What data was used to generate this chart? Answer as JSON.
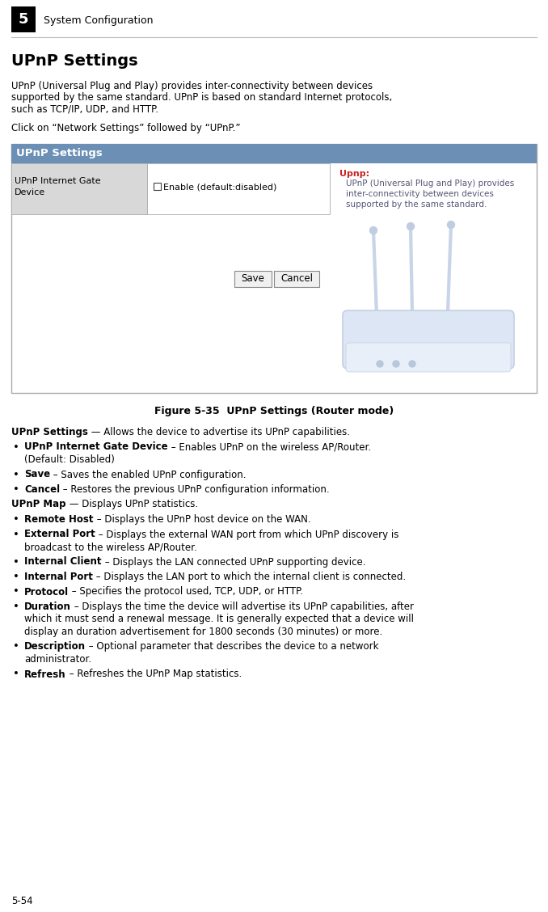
{
  "page_width": 6.78,
  "page_height": 11.28,
  "bg_color": "#ffffff",
  "header_num": "5",
  "header_text": "System Configuration",
  "section_title": "UPnP Settings",
  "intro_lines": [
    "UPnP (Universal Plug and Play) provides inter-connectivity between devices",
    "supported by the same standard. UPnP is based on standard Internet protocols,",
    "such as TCP/IP, UDP, and HTTP."
  ],
  "click_text": "Click on “Network Settings” followed by “UPnP.”",
  "ui_header": "UPnP Settings",
  "ui_header_bg": "#6b8fb5",
  "ui_row_label": "UPnP Internet Gate\nDevice",
  "ui_row_label_bg": "#d8d8d8",
  "ui_checkbox_label": "Enable (default:disabled)",
  "ui_tip_title": "Upnp:",
  "ui_tip_lines": [
    "UPnP (Universal Plug and Play) provides",
    "inter-connectivity between devices",
    "supported by the same standard."
  ],
  "ui_save": "Save",
  "ui_cancel": "Cancel",
  "fig_caption": "Figure 5-35  UPnP Settings (Router mode)",
  "body": [
    {
      "bold": "UPnP Settings",
      "normal": " — Allows the device to advertise its UPnP capabilities.",
      "bullet": false,
      "cont": []
    },
    {
      "bold": "UPnP Internet Gate Device",
      "normal": " – Enables UPnP on the wireless AP/Router.",
      "bullet": true,
      "cont": [
        "(Default: Disabled)"
      ]
    },
    {
      "bold": "Save",
      "normal": " – Saves the enabled UPnP configuration.",
      "bullet": true,
      "cont": []
    },
    {
      "bold": "Cancel",
      "normal": " – Restores the previous UPnP configuration information.",
      "bullet": true,
      "cont": []
    },
    {
      "bold": "UPnP Map",
      "normal": " — Displays UPnP statistics.",
      "bullet": false,
      "cont": []
    },
    {
      "bold": "Remote Host",
      "normal": " – Displays the UPnP host device on the WAN.",
      "bullet": true,
      "cont": []
    },
    {
      "bold": "External Port",
      "normal": " – Displays the external WAN port from which UPnP discovery is",
      "bullet": true,
      "cont": [
        "broadcast to the wireless AP/Router."
      ]
    },
    {
      "bold": "Internal Client",
      "normal": " – Displays the LAN connected UPnP supporting device.",
      "bullet": true,
      "cont": []
    },
    {
      "bold": "Internal Port",
      "normal": " – Displays the LAN port to which the internal client is connected.",
      "bullet": true,
      "cont": []
    },
    {
      "bold": "Protocol",
      "normal": " – Specifies the protocol used, TCP, UDP, or HTTP.",
      "bullet": true,
      "cont": []
    },
    {
      "bold": "Duration",
      "normal": " – Displays the time the device will advertise its UPnP capabilities, after",
      "bullet": true,
      "cont": [
        "which it must send a renewal message. It is generally expected that a device will",
        "display an duration advertisement for 1800 seconds (30 minutes) or more."
      ]
    },
    {
      "bold": "Description",
      "normal": " – Optional parameter that describes the device to a network",
      "bullet": true,
      "cont": [
        "administrator."
      ]
    },
    {
      "bold": "Refresh",
      "normal": " – Refreshes the UPnP Map statistics.",
      "bullet": true,
      "cont": []
    }
  ],
  "footer": "5-54"
}
